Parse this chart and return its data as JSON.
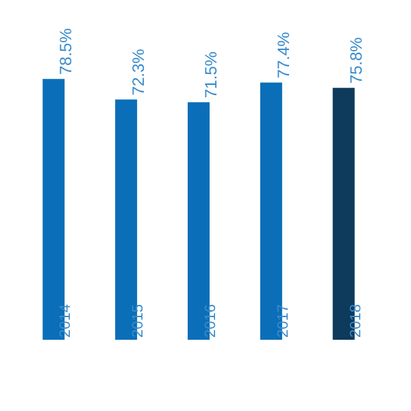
{
  "chart_data": {
    "type": "bar",
    "categories": [
      "2014",
      "2015",
      "2016",
      "2017",
      "2018"
    ],
    "values": [
      78.5,
      72.3,
      71.5,
      77.4,
      75.8
    ],
    "colors": [
      "#0a6fb8",
      "#0a6fb8",
      "#0a6fb8",
      "#0a6fb8",
      "#0e3a5c"
    ],
    "value_labels": [
      "78.5%",
      "72.3%",
      "71.5%",
      "77.4%",
      "75.8%"
    ],
    "tick_labels": "x"
  }
}
